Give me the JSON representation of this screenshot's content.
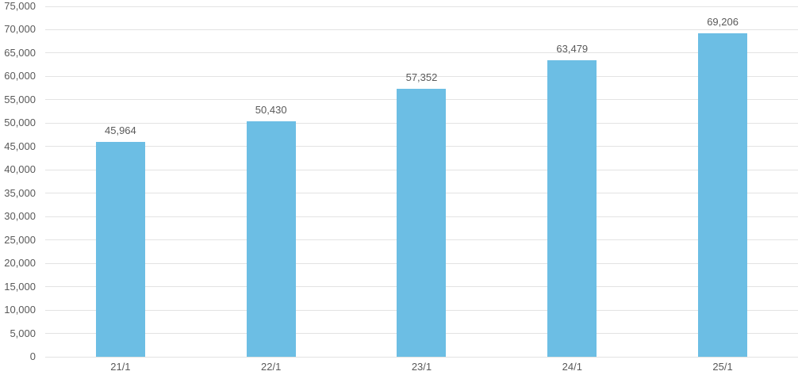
{
  "chart_data": {
    "type": "bar",
    "title": "",
    "xlabel": "",
    "ylabel": "",
    "categories": [
      "21/1",
      "22/1",
      "23/1",
      "24/1",
      "25/1"
    ],
    "values": [
      45964,
      50430,
      57352,
      63479,
      69206
    ],
    "value_labels": [
      "45,964",
      "50,430",
      "57,352",
      "63,479",
      "69,206"
    ],
    "ylim": [
      0,
      75000
    ],
    "ytick_step": 5000,
    "ytick_labels": [
      "0",
      "5,000",
      "10,000",
      "15,000",
      "20,000",
      "25,000",
      "30,000",
      "35,000",
      "40,000",
      "45,000",
      "50,000",
      "55,000",
      "60,000",
      "65,000",
      "70,000",
      "75,000"
    ],
    "grid": true,
    "legend": false,
    "colors": {
      "bar": "#6cbee4",
      "gridline": "#e3e3e3",
      "text": "#595959",
      "background": "#ffffff"
    }
  }
}
